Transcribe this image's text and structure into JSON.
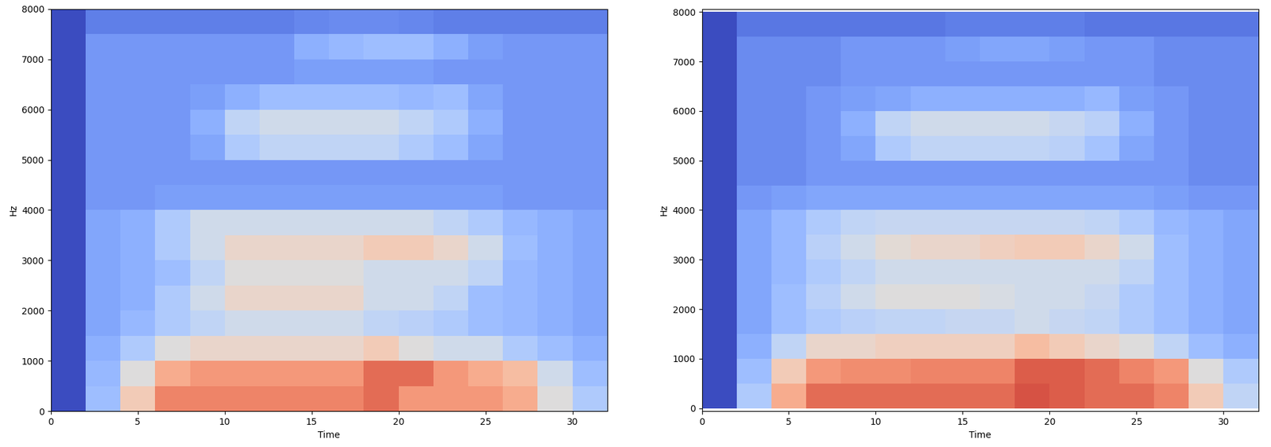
{
  "chart_data": [
    {
      "type": "heatmap",
      "color": "coolwarm",
      "x_label": "Time",
      "y_label": "Hz",
      "xlim": [
        0,
        32
      ],
      "xticks": [
        0,
        5,
        10,
        15,
        20,
        25,
        30
      ],
      "ylim": [
        0,
        8000
      ],
      "yticks": [
        0,
        1000,
        2000,
        3000,
        4000,
        5000,
        6000,
        7000,
        8000
      ],
      "color_range": [
        0,
        100
      ],
      "x_bins": [
        0,
        2,
        4,
        6,
        8,
        10,
        12,
        14,
        16,
        18,
        20,
        22,
        24,
        26,
        28,
        30,
        32
      ],
      "y_bins": [
        0,
        500,
        1000,
        1500,
        2000,
        2500,
        3000,
        3500,
        4000,
        4500,
        5000,
        5500,
        6000,
        6500,
        7000,
        7500,
        8000
      ],
      "cells": [
        [
          0,
          30,
          60,
          80,
          80,
          80,
          80,
          80,
          80,
          85,
          75,
          75,
          75,
          70,
          50,
          35
        ],
        [
          0,
          28,
          50,
          70,
          75,
          75,
          75,
          75,
          75,
          85,
          85,
          75,
          70,
          65,
          45,
          30
        ],
        [
          0,
          25,
          35,
          50,
          55,
          55,
          55,
          55,
          55,
          60,
          50,
          45,
          45,
          35,
          30,
          25
        ],
        [
          0,
          22,
          28,
          35,
          40,
          45,
          45,
          45,
          45,
          40,
          38,
          35,
          30,
          28,
          25,
          22
        ],
        [
          0,
          22,
          25,
          35,
          45,
          55,
          55,
          55,
          55,
          45,
          45,
          40,
          30,
          28,
          25,
          22
        ],
        [
          0,
          22,
          25,
          30,
          40,
          50,
          50,
          50,
          50,
          45,
          45,
          45,
          40,
          28,
          25,
          22
        ],
        [
          0,
          22,
          25,
          35,
          45,
          55,
          55,
          55,
          55,
          60,
          60,
          55,
          45,
          30,
          25,
          22
        ],
        [
          0,
          22,
          25,
          35,
          45,
          45,
          45,
          45,
          45,
          45,
          45,
          40,
          35,
          28,
          25,
          22
        ],
        [
          0,
          18,
          18,
          20,
          20,
          20,
          20,
          20,
          20,
          20,
          20,
          20,
          20,
          18,
          18,
          18
        ],
        [
          0,
          18,
          18,
          18,
          18,
          18,
          18,
          18,
          18,
          18,
          18,
          18,
          18,
          18,
          18,
          18
        ],
        [
          0,
          18,
          18,
          18,
          22,
          35,
          40,
          40,
          40,
          40,
          35,
          30,
          22,
          18,
          18,
          18
        ],
        [
          0,
          18,
          18,
          18,
          25,
          40,
          45,
          45,
          45,
          45,
          40,
          35,
          25,
          18,
          18,
          18
        ],
        [
          0,
          18,
          18,
          18,
          20,
          25,
          30,
          30,
          30,
          30,
          28,
          30,
          22,
          18,
          18,
          18
        ],
        [
          0,
          18,
          18,
          18,
          18,
          18,
          18,
          20,
          20,
          20,
          20,
          18,
          18,
          18,
          18,
          18
        ],
        [
          0,
          18,
          18,
          18,
          18,
          18,
          18,
          25,
          28,
          30,
          30,
          25,
          20,
          18,
          18,
          18
        ],
        [
          0,
          12,
          12,
          12,
          12,
          12,
          12,
          14,
          15,
          15,
          14,
          12,
          12,
          12,
          12,
          12
        ]
      ]
    },
    {
      "type": "heatmap",
      "color": "coolwarm",
      "x_label": "Time",
      "y_label": "Hz",
      "xlim": [
        0,
        32
      ],
      "xticks": [
        0,
        5,
        10,
        15,
        20,
        25,
        30
      ],
      "ylim": [
        -60,
        8060
      ],
      "yticks": [
        0,
        1000,
        2000,
        3000,
        4000,
        5000,
        6000,
        7000,
        8000
      ],
      "color_range": [
        0,
        100
      ],
      "x_bins": [
        0,
        2,
        4,
        6,
        8,
        10,
        12,
        14,
        16,
        18,
        20,
        22,
        24,
        26,
        28,
        30,
        32
      ],
      "y_bins": [
        0,
        500,
        1000,
        1500,
        2000,
        2500,
        3000,
        3500,
        4000,
        4500,
        5000,
        5500,
        6000,
        6500,
        7000,
        7500,
        8000
      ],
      "cells": [
        [
          0,
          35,
          70,
          85,
          85,
          85,
          85,
          85,
          85,
          90,
          88,
          85,
          85,
          80,
          60,
          40
        ],
        [
          0,
          30,
          60,
          75,
          78,
          78,
          80,
          80,
          80,
          88,
          88,
          85,
          80,
          75,
          50,
          35
        ],
        [
          0,
          25,
          40,
          55,
          55,
          58,
          58,
          58,
          58,
          65,
          60,
          55,
          50,
          40,
          30,
          25
        ],
        [
          0,
          22,
          30,
          35,
          38,
          40,
          40,
          42,
          42,
          45,
          42,
          40,
          35,
          30,
          25,
          22
        ],
        [
          0,
          22,
          30,
          38,
          45,
          50,
          50,
          50,
          48,
          45,
          45,
          42,
          35,
          30,
          25,
          22
        ],
        [
          0,
          22,
          28,
          35,
          40,
          45,
          45,
          45,
          45,
          45,
          45,
          45,
          40,
          30,
          25,
          22
        ],
        [
          0,
          22,
          28,
          38,
          45,
          52,
          55,
          55,
          58,
          60,
          60,
          55,
          45,
          30,
          25,
          22
        ],
        [
          0,
          22,
          28,
          35,
          40,
          42,
          42,
          42,
          42,
          42,
          42,
          40,
          35,
          28,
          25,
          22
        ],
        [
          0,
          18,
          20,
          22,
          22,
          22,
          22,
          22,
          22,
          22,
          22,
          22,
          22,
          20,
          18,
          18
        ],
        [
          0,
          15,
          15,
          18,
          18,
          18,
          18,
          18,
          18,
          18,
          18,
          18,
          18,
          18,
          15,
          15
        ],
        [
          0,
          15,
          15,
          18,
          22,
          35,
          40,
          40,
          40,
          40,
          38,
          32,
          22,
          18,
          15,
          15
        ],
        [
          0,
          15,
          15,
          18,
          25,
          40,
          45,
          45,
          45,
          45,
          42,
          38,
          25,
          18,
          15,
          15
        ],
        [
          0,
          15,
          15,
          18,
          20,
          22,
          25,
          25,
          25,
          25,
          25,
          28,
          20,
          18,
          15,
          15
        ],
        [
          0,
          15,
          15,
          15,
          18,
          18,
          18,
          18,
          18,
          18,
          18,
          18,
          18,
          15,
          15,
          15
        ],
        [
          0,
          15,
          15,
          15,
          18,
          18,
          18,
          20,
          22,
          22,
          20,
          18,
          18,
          15,
          15,
          15
        ],
        [
          0,
          10,
          10,
          10,
          10,
          10,
          10,
          12,
          12,
          12,
          12,
          10,
          10,
          10,
          10,
          10
        ]
      ]
    }
  ]
}
